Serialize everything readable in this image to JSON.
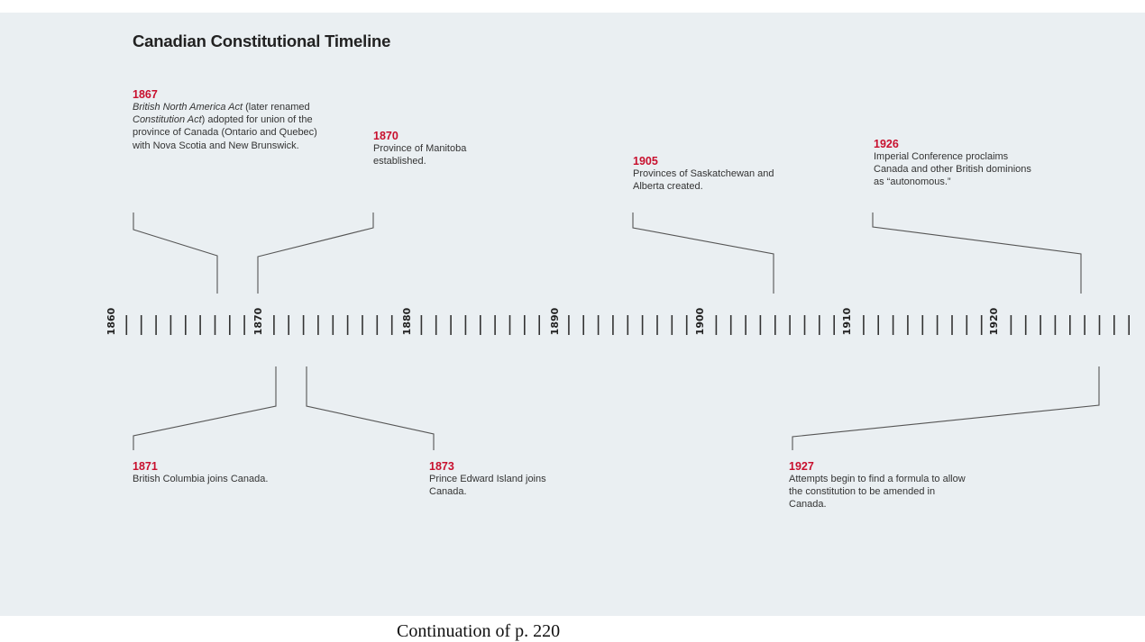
{
  "title": "Canadian Constitutional Timeline",
  "caption": "Continuation of p. 220",
  "decades": [
    "1860",
    "1870",
    "1880",
    "1890",
    "1900",
    "1910",
    "1920"
  ],
  "events": [
    {
      "year": "1867",
      "desc_pre": "",
      "desc_italic1": "British North America Act",
      "desc_mid": " (later renamed ",
      "desc_italic2": "Constitution Act",
      "desc_post": ") adopted for union of the province of Canada (Ontario and Quebec) with Nova Scotia and New Brunswick."
    },
    {
      "year": "1870",
      "desc": "Province of Manitoba established."
    },
    {
      "year": "1905",
      "desc": "Provinces of Saskatchewan and Alberta created."
    },
    {
      "year": "1926",
      "desc": "Imperial Conference proclaims Canada and other British dominions as “autonomous.”"
    },
    {
      "year": "1871",
      "desc": "British Columbia joins Canada."
    },
    {
      "year": "1873",
      "desc": "Prince Edward Island joins Canada."
    },
    {
      "year": "1927",
      "desc": "Attempts begin to find a formula to allow the constitution to be amended in Canada."
    }
  ],
  "colors": {
    "panel": "#eaeff2",
    "year": "#c8102e",
    "text": "#333333",
    "line": "#555555"
  }
}
